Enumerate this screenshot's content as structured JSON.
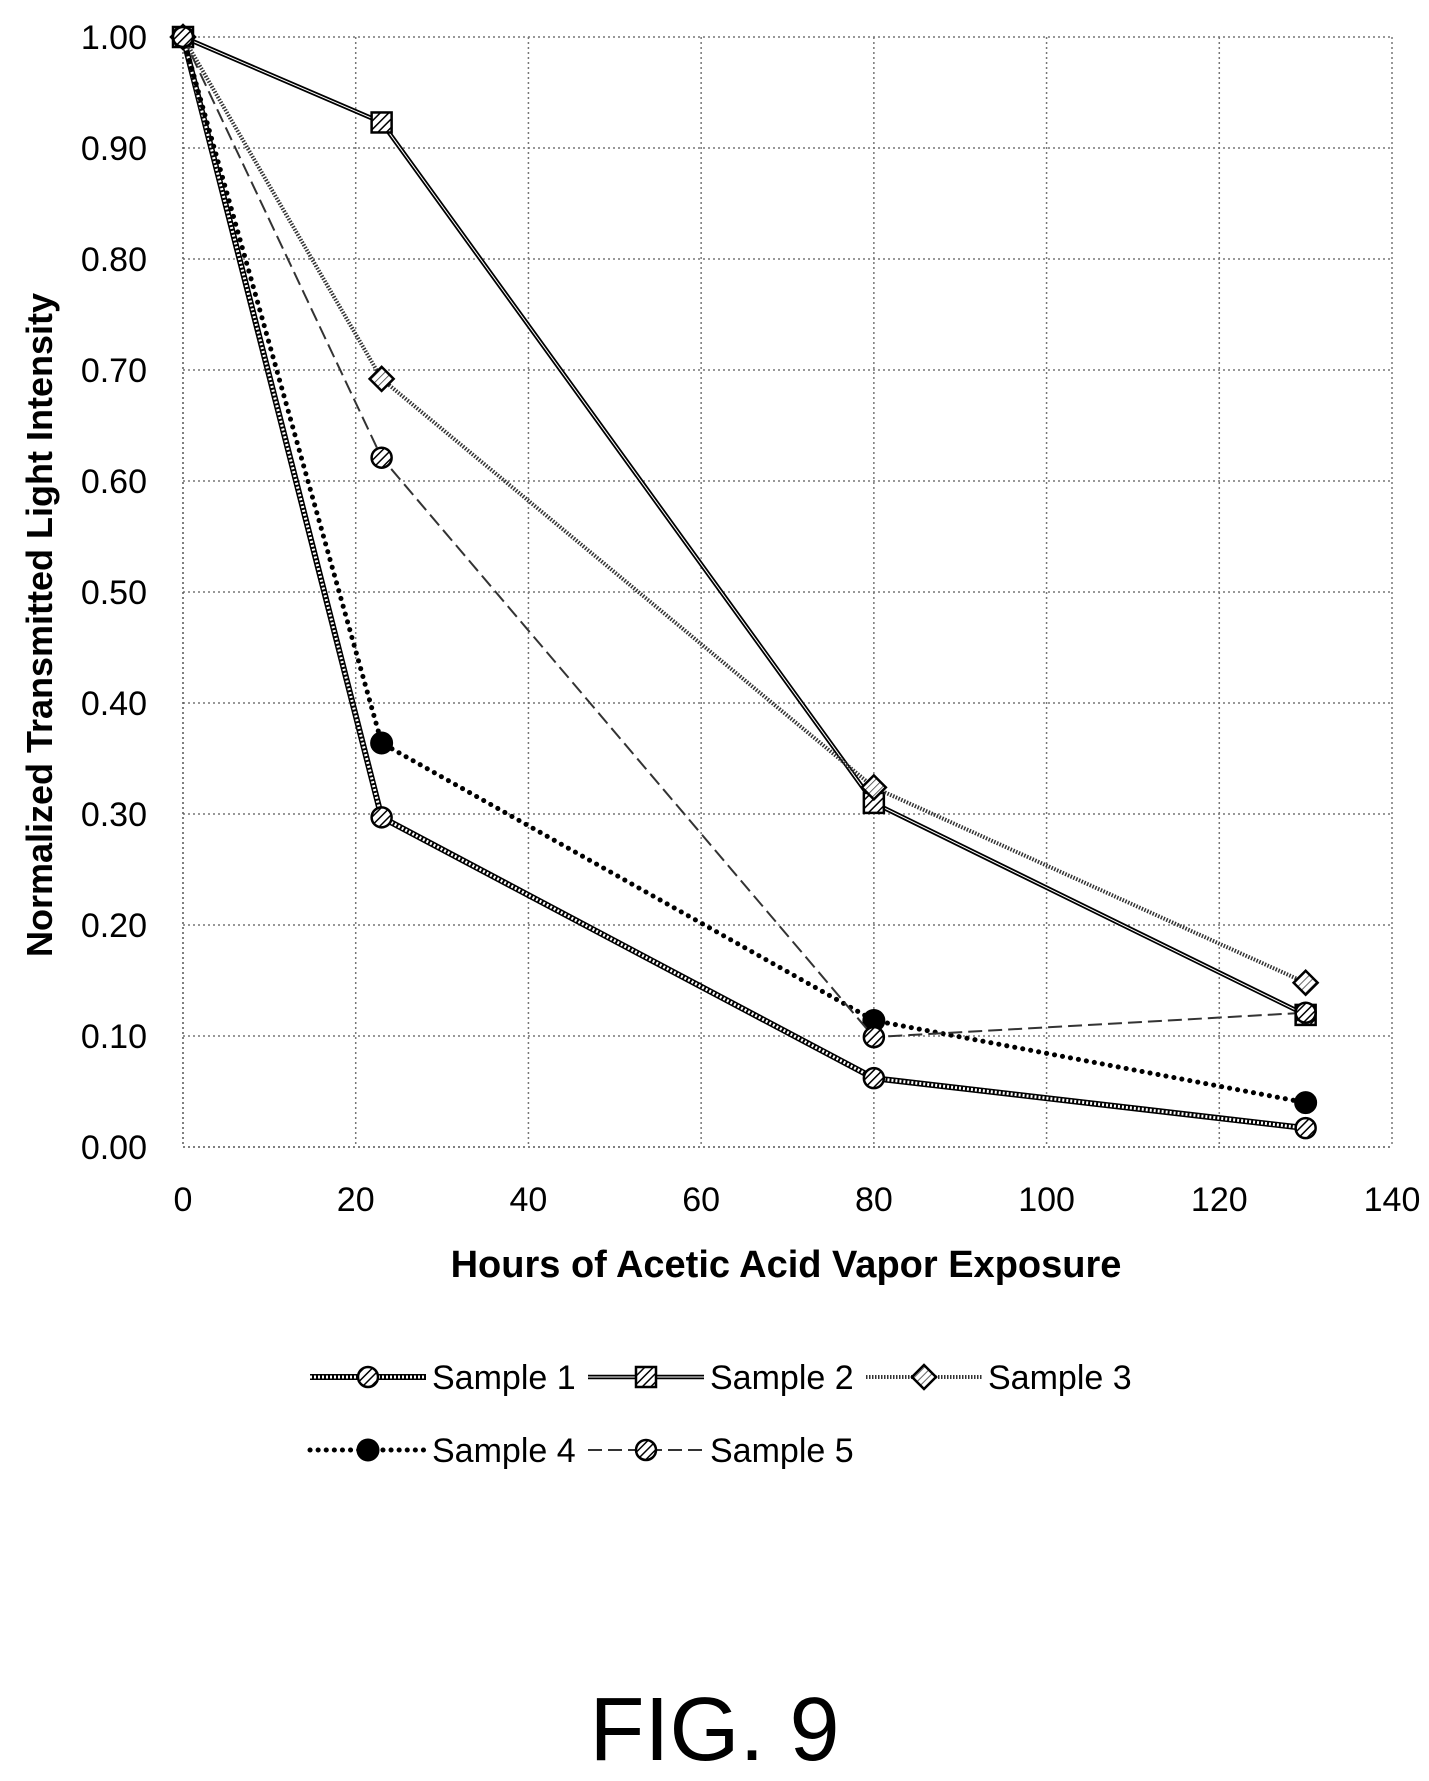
{
  "chart_data": {
    "type": "line",
    "title": "",
    "xlabel": "Hours of Acetic Acid Vapor Exposure",
    "ylabel": "Normalized Transmitted Light Intensity",
    "xlim": [
      0,
      140
    ],
    "ylim": [
      0,
      1
    ],
    "x_ticks": [
      "0",
      "20",
      "40",
      "60",
      "80",
      "100",
      "120",
      "140"
    ],
    "y_ticks": [
      "0.00",
      "0.10",
      "0.20",
      "0.30",
      "0.40",
      "0.50",
      "0.60",
      "0.70",
      "0.80",
      "0.90",
      "1.00"
    ],
    "grid": true,
    "legend_position": "bottom",
    "series": [
      {
        "name": "Sample 1",
        "x": [
          0,
          23,
          80,
          130
        ],
        "y": [
          1.0,
          0.297,
          0.062,
          0.017
        ],
        "line_style": "hatched-solid",
        "marker": "circle-hatched",
        "color": "#000000"
      },
      {
        "name": "Sample 2",
        "x": [
          0,
          23,
          80,
          130
        ],
        "y": [
          1.0,
          0.923,
          0.31,
          0.119
        ],
        "line_style": "solid",
        "marker": "square-hatched",
        "color": "#000000"
      },
      {
        "name": "Sample 3",
        "x": [
          0,
          23,
          80,
          130
        ],
        "y": [
          1.0,
          0.692,
          0.324,
          0.148
        ],
        "line_style": "light-hatched",
        "marker": "diamond-hatched",
        "color": "#000000"
      },
      {
        "name": "Sample 4",
        "x": [
          0,
          23,
          80,
          130
        ],
        "y": [
          1.0,
          0.364,
          0.114,
          0.04
        ],
        "line_style": "dotted",
        "marker": "circle-filled",
        "color": "#000000"
      },
      {
        "name": "Sample 5",
        "x": [
          0,
          23,
          80,
          130
        ],
        "y": [
          1.0,
          0.621,
          0.099,
          0.121
        ],
        "line_style": "dashed",
        "marker": "circle-hatched",
        "color": "#000000"
      }
    ]
  },
  "figure_label": "FIG. 9"
}
